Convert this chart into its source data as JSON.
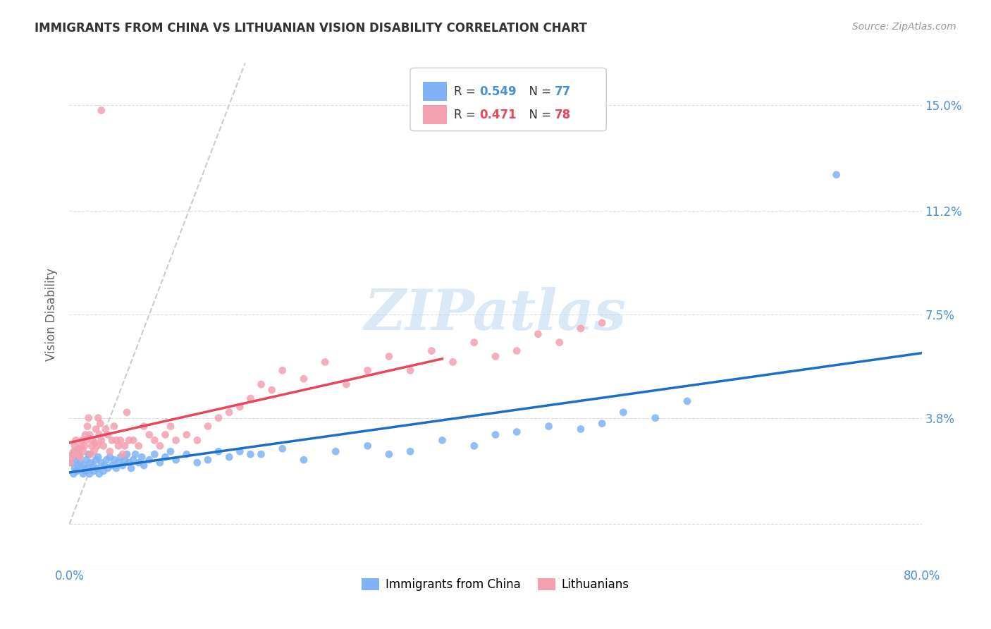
{
  "title": "IMMIGRANTS FROM CHINA VS LITHUANIAN VISION DISABILITY CORRELATION CHART",
  "source": "Source: ZipAtlas.com",
  "ylabel": "Vision Disability",
  "xlim": [
    0.0,
    0.8
  ],
  "ylim": [
    -0.015,
    0.165
  ],
  "ytick_positions": [
    0.0,
    0.038,
    0.075,
    0.112,
    0.15
  ],
  "ytick_labels": [
    "",
    "3.8%",
    "7.5%",
    "11.2%",
    "15.0%"
  ],
  "color_china": "#7fb3f5",
  "color_lith": "#f4a0b0",
  "line_color_china": "#1a6dc9",
  "line_color_lith": "#e8465a",
  "diagonal_color": "#cccccc",
  "background": "#ffffff",
  "china_x": [
    0.002,
    0.003,
    0.004,
    0.005,
    0.006,
    0.007,
    0.008,
    0.009,
    0.01,
    0.012,
    0.013,
    0.014,
    0.015,
    0.016,
    0.017,
    0.018,
    0.019,
    0.02,
    0.022,
    0.023,
    0.025,
    0.026,
    0.027,
    0.028,
    0.03,
    0.032,
    0.033,
    0.035,
    0.036,
    0.038,
    0.04,
    0.042,
    0.044,
    0.046,
    0.048,
    0.05,
    0.052,
    0.054,
    0.056,
    0.058,
    0.06,
    0.062,
    0.065,
    0.068,
    0.07,
    0.075,
    0.08,
    0.085,
    0.09,
    0.095,
    0.1,
    0.11,
    0.12,
    0.13,
    0.14,
    0.15,
    0.16,
    0.17,
    0.18,
    0.2,
    0.22,
    0.25,
    0.28,
    0.3,
    0.32,
    0.35,
    0.38,
    0.4,
    0.42,
    0.45,
    0.48,
    0.5,
    0.52,
    0.55,
    0.58,
    0.72
  ],
  "china_y": [
    0.022,
    0.025,
    0.018,
    0.02,
    0.023,
    0.019,
    0.021,
    0.024,
    0.022,
    0.02,
    0.018,
    0.021,
    0.019,
    0.023,
    0.02,
    0.025,
    0.018,
    0.022,
    0.021,
    0.019,
    0.023,
    0.02,
    0.024,
    0.018,
    0.022,
    0.019,
    0.021,
    0.023,
    0.02,
    0.024,
    0.021,
    0.023,
    0.02,
    0.022,
    0.024,
    0.021,
    0.023,
    0.025,
    0.022,
    0.02,
    0.023,
    0.025,
    0.022,
    0.024,
    0.021,
    0.023,
    0.025,
    0.022,
    0.024,
    0.026,
    0.023,
    0.025,
    0.022,
    0.023,
    0.026,
    0.024,
    0.026,
    0.025,
    0.025,
    0.027,
    0.023,
    0.026,
    0.028,
    0.025,
    0.026,
    0.03,
    0.028,
    0.032,
    0.033,
    0.035,
    0.034,
    0.036,
    0.04,
    0.038,
    0.044,
    0.125
  ],
  "lith_x": [
    0.001,
    0.002,
    0.003,
    0.004,
    0.005,
    0.006,
    0.007,
    0.008,
    0.009,
    0.01,
    0.011,
    0.012,
    0.013,
    0.014,
    0.015,
    0.016,
    0.017,
    0.018,
    0.019,
    0.02,
    0.021,
    0.022,
    0.023,
    0.024,
    0.025,
    0.026,
    0.027,
    0.028,
    0.029,
    0.03,
    0.032,
    0.034,
    0.036,
    0.038,
    0.04,
    0.042,
    0.044,
    0.046,
    0.048,
    0.05,
    0.052,
    0.054,
    0.056,
    0.06,
    0.065,
    0.07,
    0.075,
    0.08,
    0.085,
    0.09,
    0.095,
    0.1,
    0.11,
    0.12,
    0.13,
    0.14,
    0.15,
    0.16,
    0.17,
    0.18,
    0.19,
    0.2,
    0.22,
    0.24,
    0.26,
    0.28,
    0.3,
    0.32,
    0.34,
    0.36,
    0.38,
    0.4,
    0.42,
    0.44,
    0.46,
    0.48,
    0.5,
    0.03
  ],
  "lith_y": [
    0.022,
    0.024,
    0.025,
    0.026,
    0.028,
    0.03,
    0.025,
    0.027,
    0.026,
    0.024,
    0.028,
    0.03,
    0.026,
    0.028,
    0.032,
    0.03,
    0.035,
    0.038,
    0.032,
    0.025,
    0.028,
    0.03,
    0.026,
    0.029,
    0.034,
    0.028,
    0.038,
    0.032,
    0.036,
    0.03,
    0.028,
    0.034,
    0.032,
    0.026,
    0.03,
    0.035,
    0.03,
    0.028,
    0.03,
    0.025,
    0.028,
    0.04,
    0.03,
    0.03,
    0.028,
    0.035,
    0.032,
    0.03,
    0.028,
    0.032,
    0.035,
    0.03,
    0.032,
    0.03,
    0.035,
    0.038,
    0.04,
    0.042,
    0.045,
    0.05,
    0.048,
    0.055,
    0.052,
    0.058,
    0.05,
    0.055,
    0.06,
    0.055,
    0.062,
    0.058,
    0.065,
    0.06,
    0.062,
    0.068,
    0.065,
    0.07,
    0.072,
    0.148
  ]
}
